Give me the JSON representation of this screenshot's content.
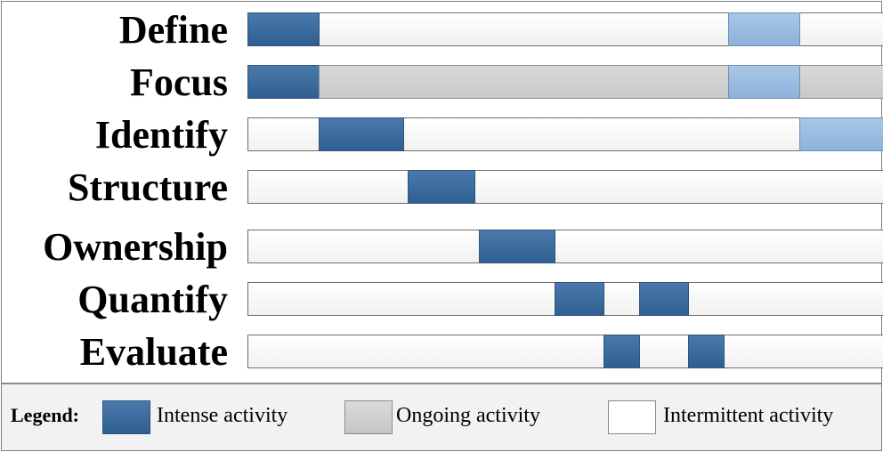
{
  "phases": [
    {
      "label": "Define",
      "segments": [
        {
          "type": "intense",
          "start": 0,
          "end": 8
        },
        {
          "type": "light",
          "start": 54,
          "end": 62
        }
      ]
    },
    {
      "label": "Focus",
      "segments": [
        {
          "type": "intense",
          "start": 0,
          "end": 8
        },
        {
          "type": "ongoing",
          "start": 8,
          "end": 54
        },
        {
          "type": "light",
          "start": 54,
          "end": 62
        },
        {
          "type": "ongoing",
          "start": 62,
          "end": 72
        }
      ]
    },
    {
      "label": "Identify",
      "segments": [
        {
          "type": "intense",
          "start": 8,
          "end": 17.5
        },
        {
          "type": "light",
          "start": 62,
          "end": 72
        }
      ]
    },
    {
      "label": "Structure",
      "segments": [
        {
          "type": "intense",
          "start": 18,
          "end": 25.5
        }
      ]
    },
    {
      "label": "Ownership",
      "segments": [
        {
          "type": "intense",
          "start": 26,
          "end": 34.5
        }
      ]
    },
    {
      "label": "Quantify",
      "segments": [
        {
          "type": "intense",
          "start": 34.5,
          "end": 40
        },
        {
          "type": "intense",
          "start": 44,
          "end": 49.5
        }
      ]
    },
    {
      "label": "Evaluate",
      "segments": [
        {
          "type": "intense",
          "start": 40,
          "end": 44
        },
        {
          "type": "intense",
          "start": 49.5,
          "end": 53.5
        }
      ]
    }
  ],
  "timeline_span": 72,
  "legend": {
    "title": "Legend:",
    "items": [
      {
        "key": "intense",
        "label": "Intense activity"
      },
      {
        "key": "ongoing",
        "label": "Ongoing activity"
      },
      {
        "key": "intermittent",
        "label": "Intermittent activity"
      }
    ]
  },
  "colors": {
    "intense": "#3a6a9c",
    "ongoing": "#cfcfcf",
    "light": "#9bbce0",
    "intermittent": "#ffffff"
  }
}
